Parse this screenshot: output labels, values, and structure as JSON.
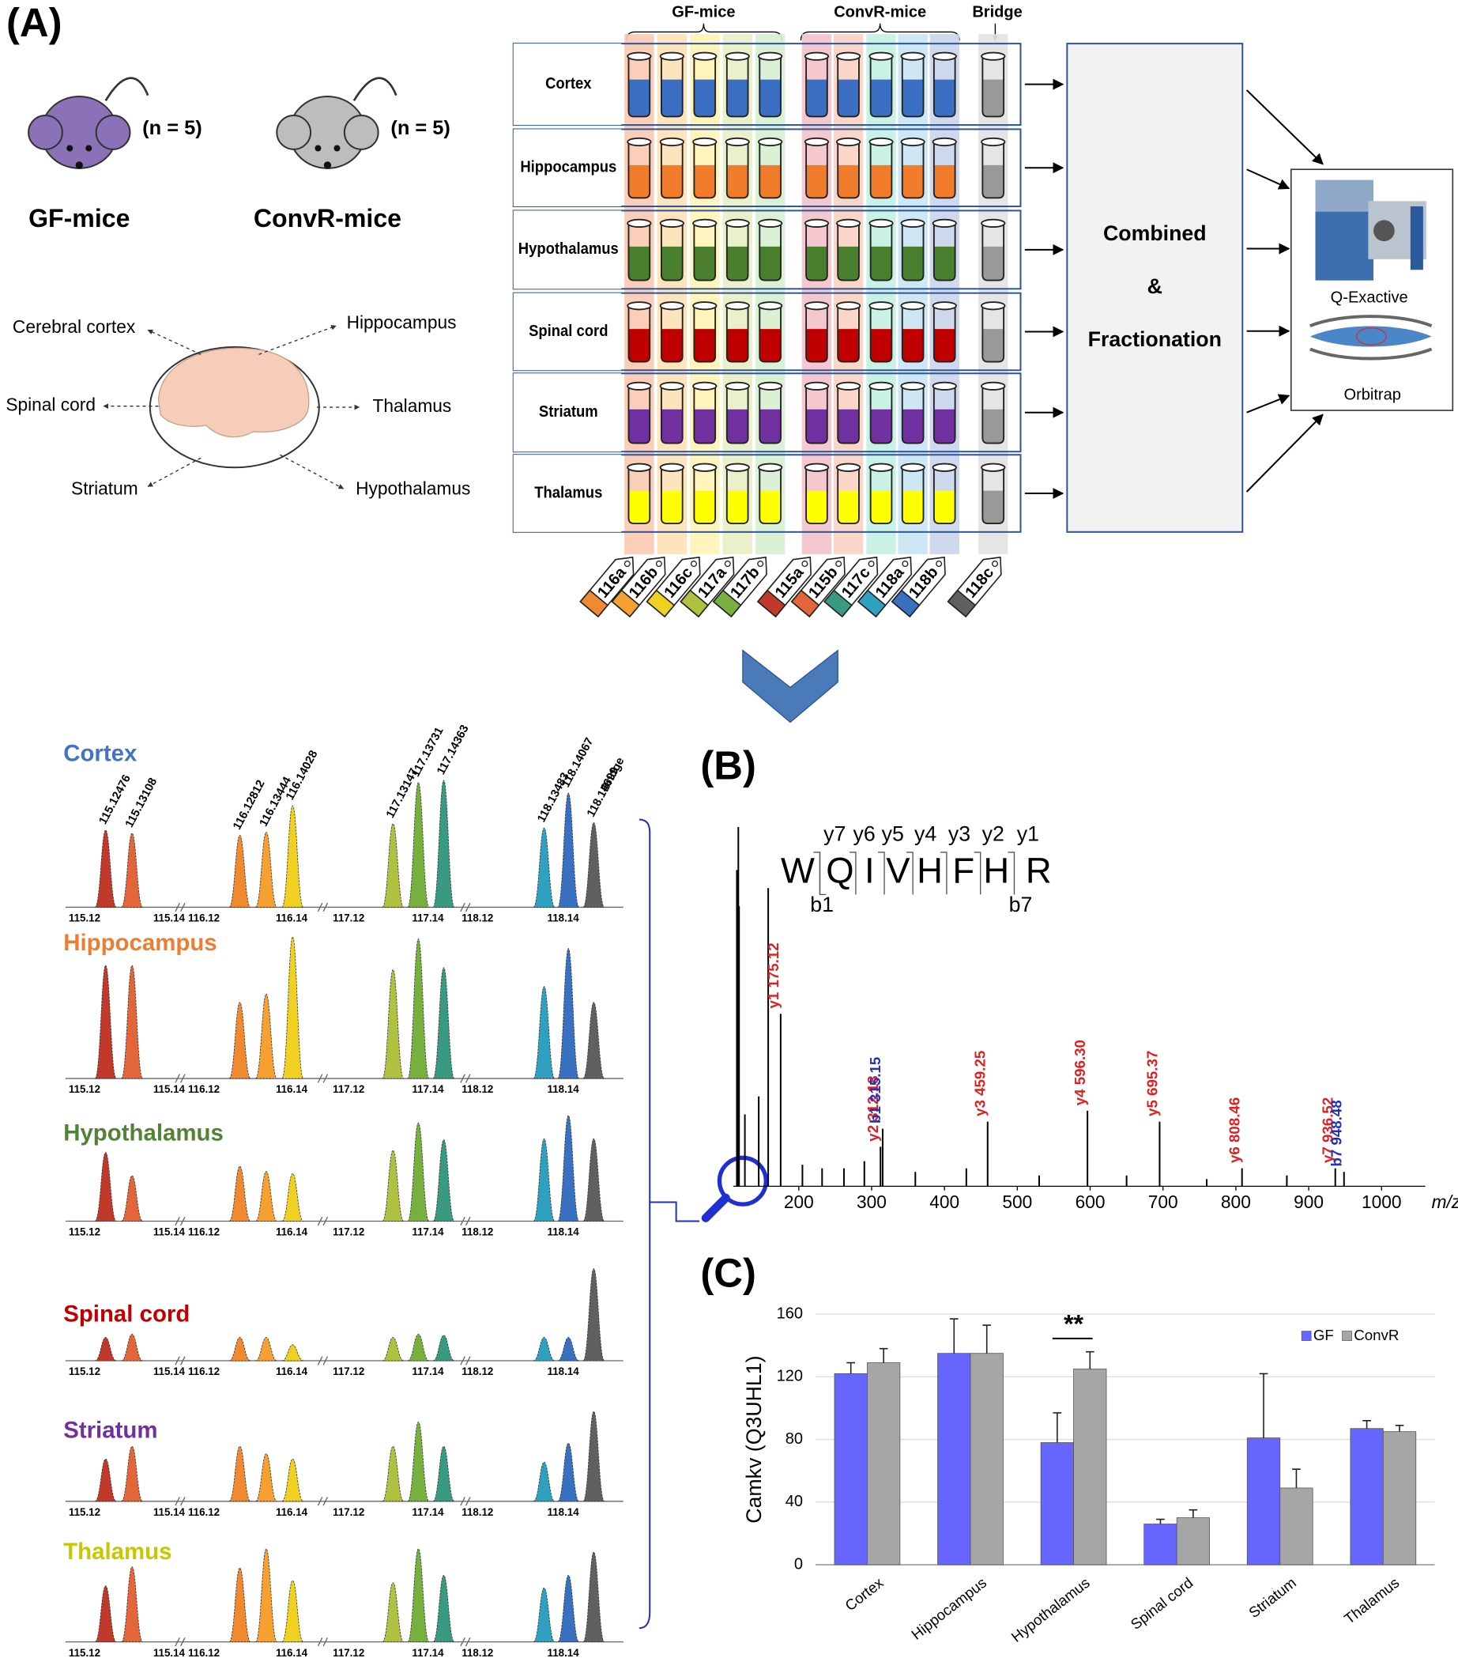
{
  "panel_labels": [
    "(A)",
    "(B)",
    "(C)"
  ],
  "mice": [
    {
      "name": "GF-mice",
      "n": "(n = 5)",
      "color": "#8b72b8"
    },
    {
      "name": "ConvR-mice",
      "n": "(n = 5)",
      "color": "#bdbdbd"
    }
  ],
  "brain_regions": [
    "Cerebral cortex",
    "Hippocampus",
    "Spinal cord",
    "Thalamus",
    "Striatum",
    "Hypothalamus"
  ],
  "groups": [
    "GF-mice",
    "ConvR-mice",
    "Bridge"
  ],
  "tissues": [
    {
      "name": "Cortex",
      "color": "#4472c4",
      "liquid": "#3a6fc4"
    },
    {
      "name": "Hippocampus",
      "color": "#ed7d31",
      "liquid": "#f07c2c"
    },
    {
      "name": "Hypothalamus",
      "color": "#548235",
      "liquid": "#4a7f2e"
    },
    {
      "name": "Spinal cord",
      "color": "#c00000",
      "liquid": "#c00000"
    },
    {
      "name": "Striatum",
      "color": "#7030a0",
      "liquid": "#7030a0"
    },
    {
      "name": "Thalamus",
      "color": "#c8c800",
      "liquid": "#ffff00"
    }
  ],
  "bridge_liquid": "#999999",
  "tags": [
    {
      "label": "116a",
      "color": "#f08a30",
      "stripe": "#f9c9b0"
    },
    {
      "label": "116b",
      "color": "#f5a030",
      "stripe": "#fde1b5"
    },
    {
      "label": "116c",
      "color": "#f0d020",
      "stripe": "#fff4b5"
    },
    {
      "label": "117a",
      "color": "#b0c040",
      "stripe": "#e8f0c4"
    },
    {
      "label": "117b",
      "color": "#78b040",
      "stripe": "#d6efd0"
    },
    {
      "label": "115a",
      "color": "#c0392b",
      "stripe": "#f4c2ca"
    },
    {
      "label": "115b",
      "color": "#e3663b",
      "stripe": "#f9d2c2"
    },
    {
      "label": "117c",
      "color": "#3a9a80",
      "stripe": "#c4f0e2"
    },
    {
      "label": "118a",
      "color": "#30a0c0",
      "stripe": "#c8e4f4"
    },
    {
      "label": "118b",
      "color": "#3a70c0",
      "stripe": "#cad5ec"
    },
    {
      "label": "118c",
      "color": "#606060",
      "stripe": "#e2e2e2"
    }
  ],
  "steps": [
    "Combined",
    "&",
    "Fractionation"
  ],
  "instrument": [
    "Q-Exactive",
    "Orbitrap"
  ],
  "reporter_ions": {
    "peak_labels": [
      "115.12476",
      "115.13108",
      "116.12812",
      "116.13444",
      "116.14028",
      "117.13147",
      "117.13731",
      "117.14363",
      "118.13483",
      "118.14067",
      "118.14699"
    ],
    "peak_colors": [
      "#c0392b",
      "#e3663b",
      "#f08a30",
      "#f5a030",
      "#f0d020",
      "#b0c040",
      "#78b040",
      "#3a9a80",
      "#30a0c0",
      "#3a70c0",
      "#606060"
    ],
    "axis_labels": [
      "115.12",
      "115.14",
      "116.12",
      "116.14",
      "117.12",
      "117.14",
      "118.12",
      "118.14"
    ],
    "intensities": [
      [
        73,
        70,
        68,
        71,
        96,
        79,
        118,
        120,
        75,
        108,
        80
      ],
      [
        107,
        107,
        72,
        80,
        134,
        103,
        132,
        105,
        87,
        123,
        72
      ],
      [
        65,
        43,
        52,
        47,
        45,
        67,
        93,
        77,
        78,
        100,
        78
      ],
      [
        22,
        25,
        22,
        22,
        15,
        22,
        25,
        24,
        22,
        22,
        87
      ],
      [
        40,
        52,
        52,
        45,
        40,
        52,
        75,
        52,
        37,
        55,
        85
      ],
      [
        53,
        71,
        70,
        88,
        58,
        56,
        88,
        63,
        51,
        63,
        85
      ]
    ]
  },
  "peptide": {
    "residues": [
      "W",
      "Q",
      "I",
      "V",
      "H",
      "F",
      "H",
      "R"
    ],
    "y_ions": [
      "y7",
      "y6",
      "y5",
      "y4",
      "y3",
      "y2",
      "y1"
    ],
    "b_ions": [
      "b1",
      "b7"
    ]
  },
  "chart_data": [
    {
      "type": "stem",
      "xlabel": "m/z",
      "color": "#000000",
      "xlim": [
        110,
        1060
      ],
      "xticks": [
        200,
        300,
        400,
        500,
        600,
        700,
        800,
        900,
        1000
      ],
      "ylim": [
        0,
        100
      ],
      "mz": [
        115,
        116,
        117,
        118,
        126,
        145,
        158,
        175.12,
        205,
        232,
        262,
        290,
        312.18,
        315.15,
        360,
        430,
        459.25,
        530,
        596.3,
        650,
        695.37,
        760,
        808.46,
        870,
        936.52,
        948.48
      ],
      "intensity": [
        88,
        82,
        100,
        78,
        20,
        25,
        83,
        48,
        6,
        5,
        5,
        7,
        11,
        16,
        4,
        5,
        18,
        3,
        21,
        3,
        18,
        2,
        5,
        3,
        5,
        4
      ],
      "labels": [
        null,
        null,
        null,
        null,
        null,
        null,
        null,
        "y1 175.12",
        null,
        null,
        null,
        null,
        "y2 312.18",
        "b1 315.15",
        null,
        null,
        "y3 459.25",
        null,
        "y4 596.30",
        null,
        "y5 695.37",
        null,
        "y6 808.46",
        null,
        "y7 936.52",
        "b7 948.48"
      ],
      "label_colors": [
        null,
        null,
        null,
        null,
        null,
        null,
        null,
        "#e02020",
        null,
        null,
        null,
        null,
        "#e02020",
        "#2030c0",
        null,
        null,
        "#e02020",
        null,
        "#e02020",
        null,
        "#e02020",
        null,
        "#e02020",
        null,
        "#e02020",
        "#2030c0"
      ]
    },
    {
      "type": "bar",
      "ylabel": "Camkv (Q3UHL1)",
      "categories": [
        "Cortex",
        "Hippocampus",
        "Hypothalamus",
        "Spinal cord",
        "Striatum",
        "Thalamus"
      ],
      "series": [
        {
          "name": "GF",
          "color": "#6666ff",
          "values": [
            122,
            135,
            78,
            26,
            81,
            87
          ],
          "errors": [
            7,
            22,
            19,
            3,
            41,
            5
          ]
        },
        {
          "name": "ConvR",
          "color": "#a6a6a6",
          "values": [
            129,
            135,
            125,
            30,
            49,
            85
          ],
          "errors": [
            9,
            18,
            11,
            5,
            12,
            4
          ]
        }
      ],
      "ylim": [
        0,
        160
      ],
      "yticks": [
        0,
        40,
        80,
        120,
        160
      ],
      "grid": true,
      "legend": "upper right",
      "annotation": "**"
    }
  ]
}
